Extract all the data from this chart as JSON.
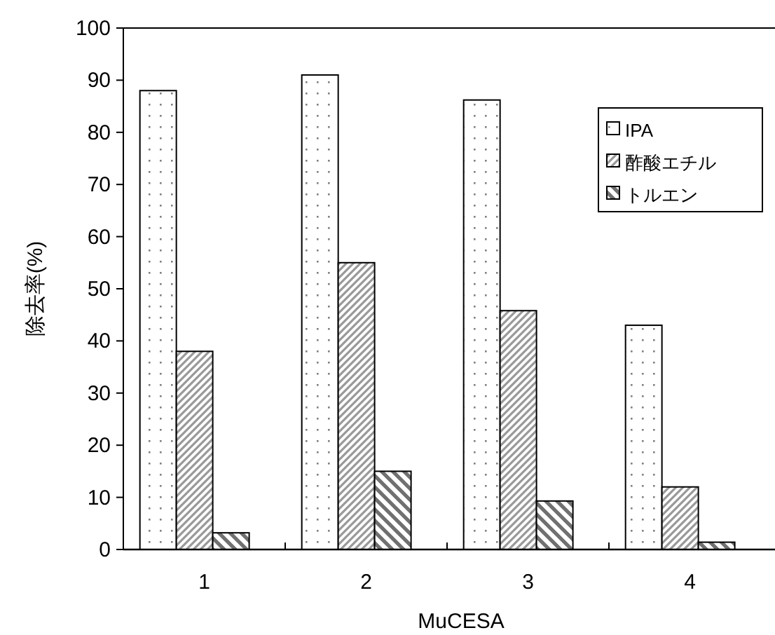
{
  "chart_data": {
    "type": "bar",
    "xlabel": "MuCESA",
    "ylabel": "除去率(%)",
    "categories": [
      "1",
      "2",
      "3",
      "4"
    ],
    "series": [
      {
        "name": "IPA",
        "color": "#000000",
        "values": [
          88,
          91,
          86.2,
          43
        ]
      },
      {
        "name": "酢酸エチル",
        "color": "#000000",
        "values": [
          38,
          55,
          45.8,
          12
        ]
      },
      {
        "name": "トルエン",
        "color": "#000000",
        "values": [
          3.2,
          15,
          9.3,
          1.4
        ]
      }
    ],
    "ylim": [
      0,
      100
    ],
    "yticks": [
      0,
      10,
      20,
      30,
      40,
      50,
      60,
      70,
      80,
      90,
      100
    ],
    "grid": false,
    "legend": "top right"
  }
}
